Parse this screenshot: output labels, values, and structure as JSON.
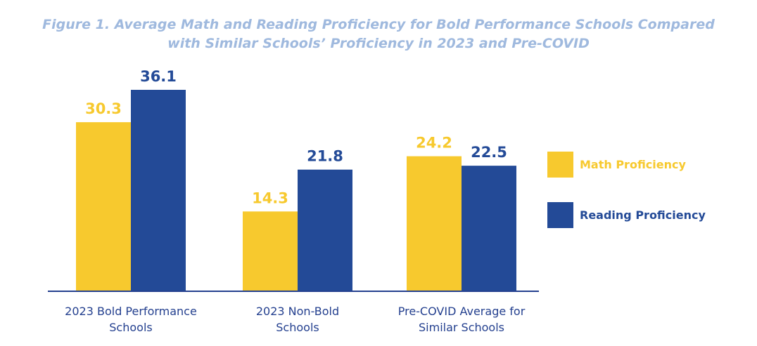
{
  "title": {
    "line1": "Figure 1. Average Math and Reading Proficiency for Bold Performance Schools Compared",
    "line2": "with Similar Schools’ Proficiency in 2023 and Pre-COVID"
  },
  "colors": {
    "math": "#f7c92e",
    "reading": "#234a97",
    "axis": "#24408f",
    "title": "#9fb9de"
  },
  "chart_data": {
    "type": "bar",
    "title": "Figure 1. Average Math and Reading Proficiency for Bold Performance Schools Compared with Similar Schools’ Proficiency in 2023 and Pre-COVID",
    "categories": [
      [
        "2023 Bold Performance",
        "Schools"
      ],
      [
        "2023 Non-Bold",
        "Schools"
      ],
      [
        "Pre-COVID Average for",
        "Similar Schools"
      ]
    ],
    "series": [
      {
        "name": "Math Proficiency",
        "values": [
          30.3,
          14.3,
          24.2
        ],
        "labels": [
          "30.3",
          "14.3",
          "24.2"
        ]
      },
      {
        "name": "Reading Proficiency",
        "values": [
          36.1,
          21.8,
          22.5
        ],
        "labels": [
          "36.1",
          "21.8",
          "22.5"
        ]
      }
    ],
    "ylim": [
      0,
      36.1
    ],
    "legend": "right",
    "grid": false
  }
}
